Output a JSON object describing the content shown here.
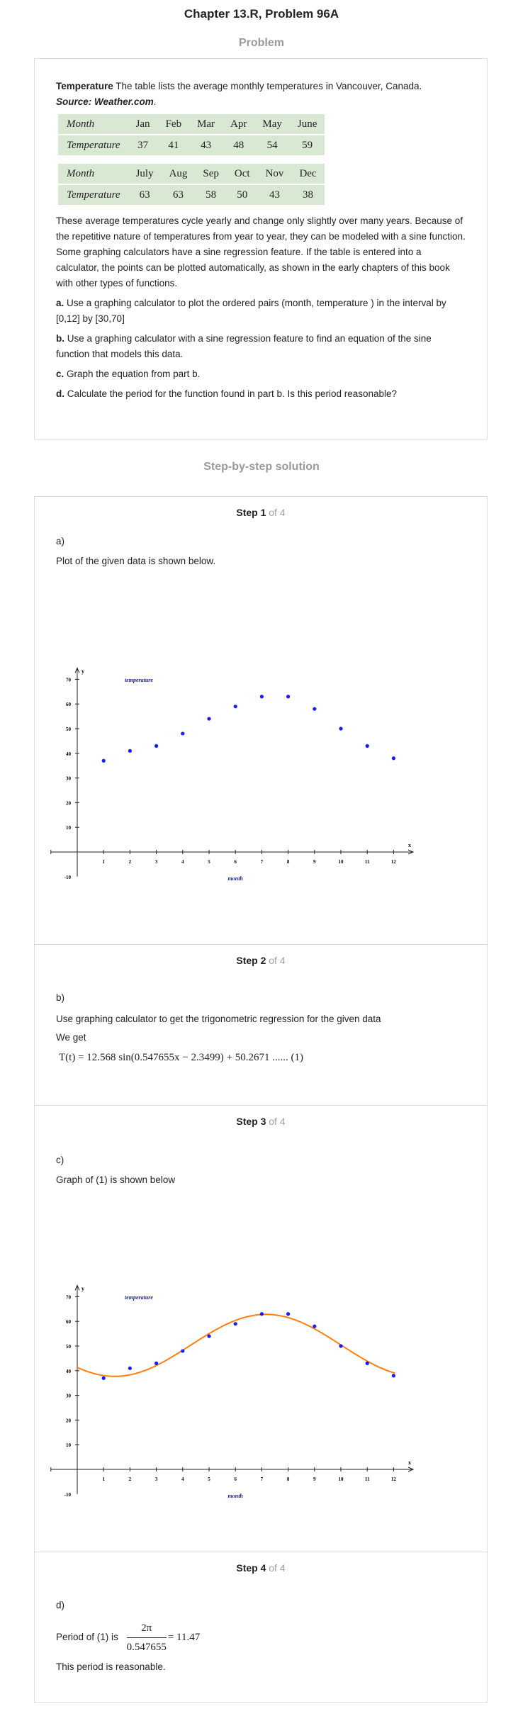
{
  "page_title": "Chapter 13.R, Problem 96A",
  "problem_label": "Problem",
  "solution_label": "Step-by-step solution",
  "problem": {
    "lead_bold": "Temperature",
    "lead_text": " The table lists the average monthly temperatures in Vancouver, Canada.",
    "source": "Source: Weather.com",
    "source_end": ".",
    "table_row_label_month": "Month",
    "table_row_label_temp": "Temperature",
    "table1_months": [
      "Jan",
      "Feb",
      "Mar",
      "Apr",
      "May",
      "June"
    ],
    "table1_temps": [
      "37",
      "41",
      "43",
      "48",
      "54",
      "59"
    ],
    "table2_months": [
      "July",
      "Aug",
      "Sep",
      "Oct",
      "Nov",
      "Dec"
    ],
    "table2_temps": [
      "63",
      "63",
      "58",
      "50",
      "43",
      "38"
    ],
    "paragraph": "These average temperatures cycle yearly and change only slightly over many years. Because of the repetitive nature of temperatures from year to year, they can be modeled with a sine function. Some graphing calculators have a sine regression feature. If the table is entered into a calculator, the points can be plotted automatically, as shown in the early chapters of this book with other types of functions.",
    "part_a_label": "a.",
    "part_a": " Use a graphing calculator to plot the ordered pairs (month, temperature ) in the interval by [0,12] by [30,70]",
    "part_b_label": "b.",
    "part_b": " Use a graphing calculator with a sine regression feature to find an equation of the sine function that models this data.",
    "part_c_label": "c.",
    "part_c": " Graph the equation from part b.",
    "part_d_label": "d.",
    "part_d": " Calculate the period for the function found in part b. Is this period reasonable?"
  },
  "steps": [
    {
      "step": "Step 1",
      "of": " of 4",
      "part": "a)",
      "text": "Plot of the given data is shown below."
    },
    {
      "step": "Step 2",
      "of": " of 4",
      "part": "b)",
      "text": "Use graphing calculator to get the trigonometric regression for the given data",
      "text2": "We get",
      "equation": "T(t) = 12.568 sin(0.547655x − 2.3499) + 50.2671 ...... (1)"
    },
    {
      "step": "Step 3",
      "of": " of 4",
      "part": "c)",
      "text": "Graph of (1) is shown below"
    },
    {
      "step": "Step 4",
      "of": " of 4",
      "part": "d)",
      "text_pre": "Period of (1) is",
      "frac_num": "2π",
      "frac_den": "0.547655",
      "frac_result": "= 11.47",
      "text_post": "This period is reasonable."
    }
  ],
  "chart_data": [
    {
      "type": "scatter",
      "title": "",
      "series_label": "temperature",
      "xlabel": "month",
      "ylabel": "",
      "x_axis_letter": "x",
      "y_axis_letter": "y",
      "x": [
        1,
        2,
        3,
        4,
        5,
        6,
        7,
        8,
        9,
        10,
        11,
        12
      ],
      "y": [
        37,
        41,
        43,
        48,
        54,
        59,
        63,
        63,
        58,
        50,
        43,
        38
      ],
      "xticks": [
        "1",
        "2",
        "3",
        "4",
        "5",
        "6",
        "7",
        "8",
        "9",
        "10",
        "11",
        "12"
      ],
      "yticks": [
        "70",
        "60",
        "50",
        "40",
        "30",
        "20",
        "10"
      ],
      "ymin_label": "-10",
      "xlim": [
        -1,
        12.5
      ],
      "ylim": [
        -10,
        72
      ],
      "point_color": "#1a1aff"
    },
    {
      "type": "line",
      "title": "",
      "series_label": "temperature",
      "xlabel": "month",
      "ylabel": "",
      "x_axis_letter": "x",
      "y_axis_letter": "y",
      "x": [
        1,
        2,
        3,
        4,
        5,
        6,
        7,
        8,
        9,
        10,
        11,
        12
      ],
      "y": [
        37,
        41,
        43,
        48,
        54,
        59,
        63,
        63,
        58,
        50,
        43,
        38
      ],
      "curve": {
        "amplitude": 12.568,
        "b": 0.547655,
        "c": 2.3499,
        "d": 50.2671
      },
      "xticks": [
        "1",
        "2",
        "3",
        "4",
        "5",
        "6",
        "7",
        "8",
        "9",
        "10",
        "11",
        "12"
      ],
      "yticks": [
        "70",
        "60",
        "50",
        "40",
        "30",
        "20",
        "10"
      ],
      "ymin_label": "-10",
      "xlim": [
        -1,
        12.5
      ],
      "ylim": [
        -10,
        72
      ],
      "point_color": "#1a1aff",
      "curve_color": "#ff7f0e"
    }
  ]
}
